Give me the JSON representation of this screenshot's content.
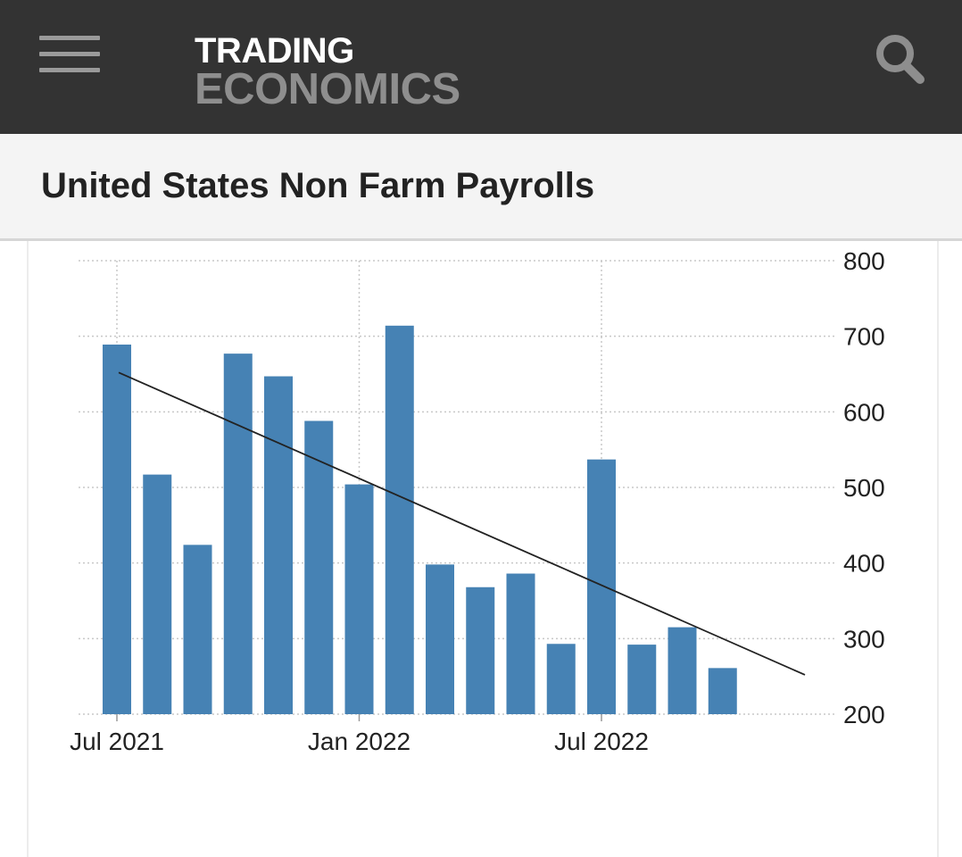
{
  "header": {
    "logo_top": "TRADING",
    "logo_bottom": "ECONOMICS",
    "menu_icon": "hamburger-menu-icon",
    "search_icon": "search-icon"
  },
  "page": {
    "title": "United States Non Farm Payrolls"
  },
  "colors": {
    "topbar": "#333333",
    "bar": "#4682b4",
    "trend": "#222222"
  },
  "chart_data": {
    "type": "bar",
    "title": "",
    "xlabel": "",
    "ylabel": "",
    "ylim": [
      200,
      800
    ],
    "y_ticks": [
      800,
      700,
      600,
      500,
      400,
      300,
      200
    ],
    "y_axis_position": "right",
    "grid": true,
    "x_tick_labels": [
      "Jul 2021",
      "Jan 2022",
      "Jul 2022"
    ],
    "categories": [
      "Jul 2021",
      "Aug 2021",
      "Sep 2021",
      "Oct 2021",
      "Nov 2021",
      "Dec 2021",
      "Jan 2022",
      "Feb 2022",
      "Mar 2022",
      "Apr 2022",
      "May 2022",
      "Jun 2022",
      "Jul 2022",
      "Aug 2022",
      "Sep 2022",
      "Oct 2022"
    ],
    "values": [
      689,
      517,
      424,
      677,
      647,
      588,
      504,
      714,
      398,
      368,
      386,
      293,
      537,
      292,
      315,
      261
    ],
    "trendline": {
      "start": 652,
      "end": 252
    }
  }
}
